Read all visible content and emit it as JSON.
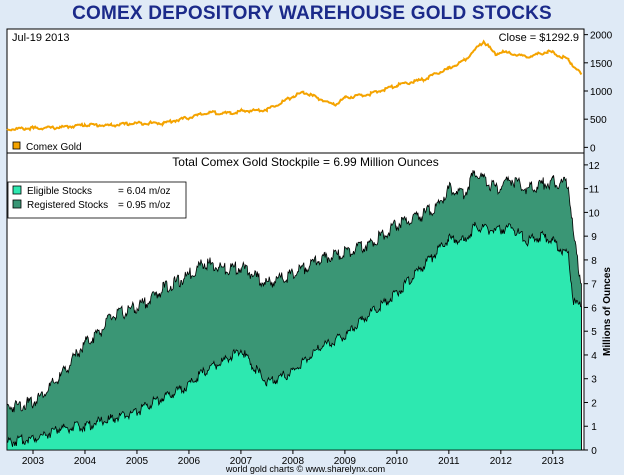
{
  "page": {
    "title": "COMEX DEPOSITORY WAREHOUSE GOLD STOCKS",
    "footer": "world gold charts © www.sharelynx.com"
  },
  "chart_data": [
    {
      "type": "line",
      "name": "top-panel",
      "date_label": "Jul-19  2013",
      "close_label": "Close = $1292.9",
      "legend": [
        {
          "label": "Comex Gold",
          "color": "#f4a300"
        }
      ],
      "ylim": [
        -100,
        2100
      ],
      "yticks": [
        0,
        500,
        1000,
        1500,
        2000
      ],
      "series": [
        {
          "name": "Comex Gold",
          "color": "#f4a300",
          "x": [
            2002.5,
            2003.0,
            2003.5,
            2004.0,
            2004.5,
            2005.0,
            2005.5,
            2006.0,
            2006.4,
            2006.8,
            2007.0,
            2007.5,
            2008.0,
            2008.2,
            2008.8,
            2009.0,
            2009.5,
            2010.0,
            2010.5,
            2011.0,
            2011.3,
            2011.67,
            2011.9,
            2012.0,
            2012.5,
            2012.9,
            2013.0,
            2013.3,
            2013.55
          ],
          "y": [
            320,
            340,
            350,
            400,
            390,
            430,
            430,
            530,
            620,
            600,
            640,
            670,
            900,
            980,
            750,
            880,
            950,
            1100,
            1200,
            1400,
            1550,
            1880,
            1650,
            1700,
            1600,
            1700,
            1680,
            1550,
            1293
          ]
        }
      ]
    },
    {
      "type": "area",
      "name": "bottom-panel",
      "title": "Total Comex Gold Stockpile = 6.99 Million Ounces",
      "ylabel": "Millions of Ounces",
      "ylim": [
        0,
        12.5
      ],
      "yticks": [
        0,
        1,
        2,
        3,
        4,
        5,
        6,
        7,
        8,
        9,
        10,
        11,
        12
      ],
      "legend": [
        {
          "label": "Eligible Stocks",
          "value": "= 6.04 m/oz",
          "color": "#2de8b0"
        },
        {
          "label": "Registered Stocks",
          "value": "= 0.95 m/oz",
          "color": "#3a9675"
        }
      ],
      "series": [
        {
          "name": "Total (Registered Stocks top)",
          "color": "#3a9675",
          "x": [
            2002.5,
            2003.0,
            2003.3,
            2003.5,
            2004.0,
            2004.3,
            2004.5,
            2005.0,
            2005.3,
            2005.5,
            2005.9,
            2006.3,
            2006.7,
            2007.0,
            2007.5,
            2008.0,
            2008.5,
            2009.0,
            2009.5,
            2010.0,
            2010.5,
            2010.8,
            2011.0,
            2011.3,
            2011.5,
            2011.9,
            2012.2,
            2012.5,
            2012.8,
            2013.0,
            2013.3,
            2013.4,
            2013.55
          ],
          "y": [
            1.8,
            2.0,
            2.6,
            3.0,
            4.5,
            5.0,
            5.6,
            6.0,
            6.4,
            6.8,
            7.2,
            7.9,
            7.6,
            7.7,
            7.0,
            7.4,
            8.0,
            8.3,
            8.7,
            9.5,
            9.9,
            10.3,
            11.0,
            10.8,
            11.7,
            11.0,
            11.4,
            11.0,
            11.2,
            11.3,
            11.2,
            9.0,
            7.0
          ]
        },
        {
          "name": "Eligible Stocks",
          "color": "#2de8b0",
          "x": [
            2002.5,
            2003.0,
            2003.3,
            2003.5,
            2004.0,
            2004.3,
            2004.5,
            2005.0,
            2005.3,
            2005.5,
            2005.9,
            2006.3,
            2006.7,
            2007.0,
            2007.5,
            2008.0,
            2008.5,
            2009.0,
            2009.5,
            2010.0,
            2010.5,
            2010.8,
            2011.0,
            2011.3,
            2011.5,
            2011.9,
            2012.2,
            2012.5,
            2012.8,
            2013.0,
            2013.3,
            2013.4,
            2013.55
          ],
          "y": [
            0.3,
            0.5,
            0.7,
            0.9,
            1.0,
            1.2,
            1.3,
            1.6,
            2.0,
            2.2,
            2.6,
            3.3,
            3.8,
            4.2,
            2.8,
            3.3,
            4.3,
            4.8,
            5.8,
            6.6,
            7.7,
            8.4,
            8.9,
            8.8,
            9.4,
            9.2,
            9.4,
            8.8,
            9.0,
            8.8,
            8.2,
            6.2,
            6.04
          ]
        }
      ]
    }
  ],
  "x_axis": {
    "ticks": [
      "2003",
      "2004",
      "2005",
      "2006",
      "2007",
      "2008",
      "2009",
      "2010",
      "2011",
      "2012",
      "2013"
    ],
    "xlim": [
      2002.5,
      2013.6
    ]
  }
}
